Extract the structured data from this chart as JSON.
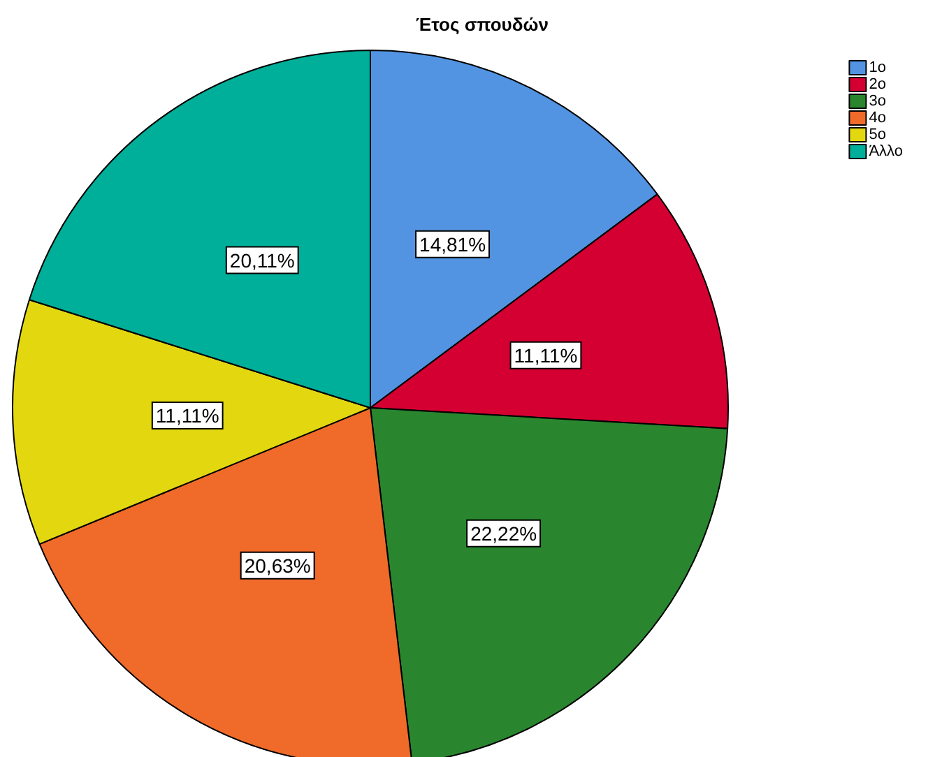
{
  "chart_data": {
    "type": "pie",
    "title": "Έτος σπουδών",
    "categories": [
      "1ο",
      "2ο",
      "3ο",
      "4ο",
      "5ο",
      "Άλλο"
    ],
    "values": [
      14.81,
      11.11,
      22.22,
      20.63,
      11.11,
      20.11
    ],
    "value_labels": [
      "14,81%",
      "11,11%",
      "22,22%",
      "20,63%",
      "11,11%",
      "20,11%"
    ],
    "colors": [
      "#5294e2",
      "#d50032",
      "#29862e",
      "#f06a2a",
      "#e3d80f",
      "#00af9a"
    ],
    "legend": "top right"
  }
}
